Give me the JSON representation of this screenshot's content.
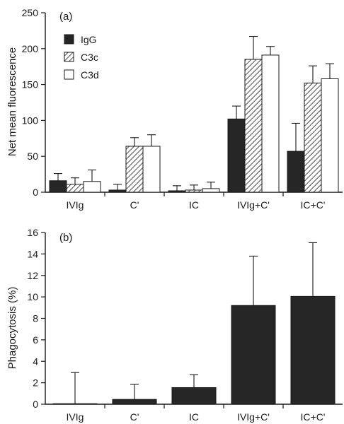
{
  "chart_data": [
    {
      "type": "bar",
      "panel_label": "(a)",
      "ylabel": "Net mean fluorescence",
      "xlabel": "",
      "ylim": [
        0,
        250
      ],
      "yticks": [
        0,
        50,
        100,
        150,
        200,
        250
      ],
      "categories": [
        "IVIg",
        "C'",
        "IC",
        "IVIg+C'",
        "IC+C'"
      ],
      "legend_position": "top-left",
      "series": [
        {
          "name": "IgG",
          "values": [
            16,
            3,
            2,
            102,
            57
          ],
          "errors": [
            10,
            8,
            7,
            18,
            39
          ],
          "fill": "solid"
        },
        {
          "name": "C3c",
          "values": [
            11,
            64,
            3,
            185,
            152
          ],
          "errors": [
            9,
            12,
            7,
            32,
            24
          ],
          "fill": "hatched"
        },
        {
          "name": "C3d",
          "values": [
            15,
            64,
            5,
            191,
            158
          ],
          "errors": [
            16,
            16,
            9,
            12,
            21
          ],
          "fill": "white"
        }
      ]
    },
    {
      "type": "bar",
      "panel_label": "(b)",
      "ylabel": "Phagocytosis (%)",
      "xlabel": "",
      "ylim": [
        0,
        16
      ],
      "yticks": [
        0,
        2,
        4,
        6,
        8,
        10,
        12,
        14,
        16
      ],
      "categories": [
        "IVIg",
        "C'",
        "IC",
        "IVIg+C'",
        "IC+C'"
      ],
      "series": [
        {
          "values": [
            0.05,
            0.45,
            1.55,
            9.2,
            10.05
          ],
          "errors": [
            2.9,
            1.4,
            1.2,
            4.6,
            5.0
          ],
          "fill": "solid"
        }
      ]
    }
  ],
  "colors": {
    "bar_dark": "#262626",
    "axis": "#1a1a1a",
    "bar_white": "#ffffff"
  }
}
